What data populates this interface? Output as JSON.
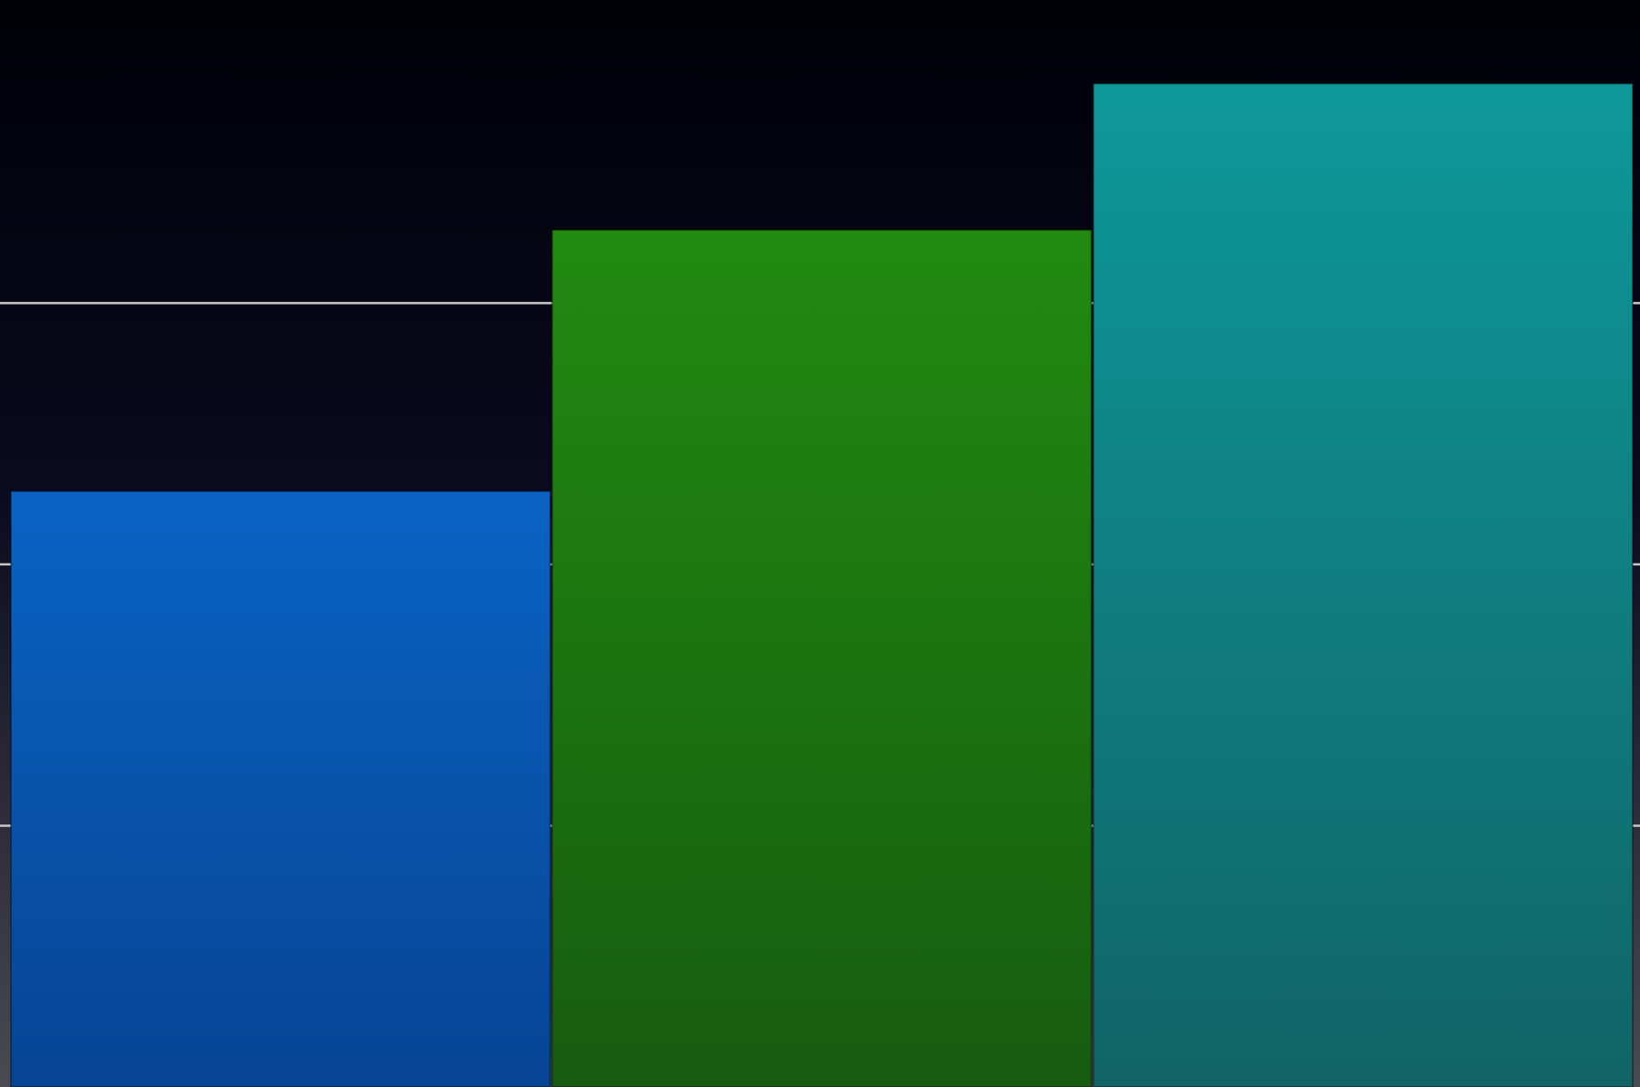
{
  "chart_data": {
    "type": "bar",
    "title": "",
    "xlabel": "",
    "ylabel": "",
    "categories": [
      "",
      "",
      ""
    ],
    "values": [
      57,
      82,
      96
    ],
    "ylim": [
      0,
      104
    ],
    "gridlines": [
      25,
      50,
      75
    ],
    "grid": true,
    "legend": "none",
    "colors": {
      "background_top": "#000008",
      "background_mid": "#0a0a1e",
      "background_bottom": "#4a4a52",
      "gridline": "#c8c8c8",
      "bars": [
        {
          "top": "#0a63c4",
          "bottom": "#064494"
        },
        {
          "top": "#218b10",
          "bottom": "#175c10"
        },
        {
          "top": "#0e989a",
          "bottom": "#116466"
        }
      ]
    }
  }
}
